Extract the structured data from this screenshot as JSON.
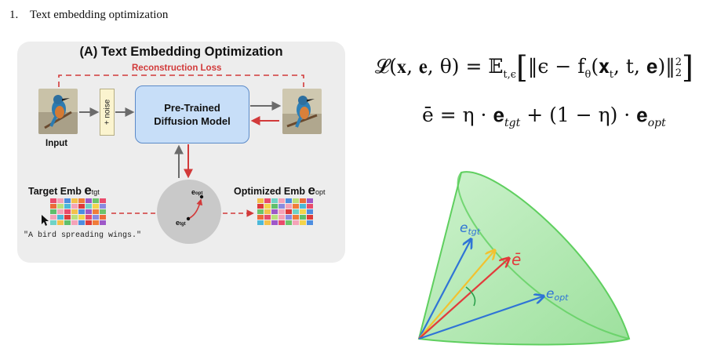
{
  "heading": {
    "number": "1.",
    "text": "Text embedding optimization"
  },
  "panel": {
    "title": "(A) Text Embedding Optimization",
    "reconstruction_loss": "Reconstruction Loss",
    "input_label": "Input",
    "noise_label": "+ noise",
    "model_line1": "Pre-Trained",
    "model_line2": "Diffusion Model",
    "target_label": "Target Emb",
    "target_symbol": "e",
    "target_sub": "tgt",
    "optimized_label": "Optimized Emb",
    "optimized_symbol": "e",
    "optimized_sub": "opt",
    "circle_opt": "e",
    "circle_opt_sub": "opt",
    "circle_tgt": "e",
    "circle_tgt_sub": "tgt",
    "prompt": "\"A bird spreading wings.\"",
    "accent_red": "#d23a3a",
    "model_fill": "#c7def8",
    "target_colors": [
      "#e94b6b",
      "#f5a3b8",
      "#4e8de0",
      "#f3c14b",
      "#f07c3a",
      "#9e58c8",
      "#6cc46b",
      "#e94b6b",
      "#ec6b3a",
      "#b9e07a",
      "#4bb8d9",
      "#f5a3b8",
      "#dd3b3b",
      "#6fd3c7",
      "#f3d44b",
      "#8a8ae0",
      "#5fbf6b",
      "#f5a3b8",
      "#e94b6b",
      "#f3c14b",
      "#4e8de0",
      "#9e58c8",
      "#f07c3a",
      "#6cc46b",
      "#f5a3b8",
      "#4bb8d9",
      "#dd3b3b",
      "#b9e07a",
      "#f3d44b",
      "#e94b6b",
      "#8a8ae0",
      "#ec6b3a",
      "#6fd3c7",
      "#f3c14b",
      "#5fbf6b",
      "#f5a3b8",
      "#4e8de0",
      "#dd3b3b",
      "#f07c3a",
      "#9e58c8"
    ],
    "opt_colors": [
      "#f3c14b",
      "#e94b6b",
      "#6fd3c7",
      "#f5a3b8",
      "#4e8de0",
      "#b9e07a",
      "#ec6b3a",
      "#9e58c8",
      "#dd3b3b",
      "#f3d44b",
      "#5fbf6b",
      "#8a8ae0",
      "#f5a3b8",
      "#f07c3a",
      "#4bb8d9",
      "#e94b6b",
      "#6cc46b",
      "#f3c14b",
      "#9e58c8",
      "#f5a3b8",
      "#dd3b3b",
      "#6fd3c7",
      "#f3d44b",
      "#4e8de0",
      "#ec6b3a",
      "#e94b6b",
      "#b9e07a",
      "#f5a3b8",
      "#8a8ae0",
      "#f07c3a",
      "#5fbf6b",
      "#dd3b3b",
      "#4bb8d9",
      "#f3c14b",
      "#9e58c8",
      "#e94b6b",
      "#6cc46b",
      "#f5a3b8",
      "#f3d44b",
      "#4e8de0"
    ]
  },
  "equations": {
    "loss_lhs": "𝓛(𝐱, 𝐞, θ) = 𝔼",
    "loss_sub": "t,ϵ",
    "loss_body": "‖ϵ − f",
    "loss_theta": "θ",
    "loss_args": "(𝐱",
    "loss_t": "t",
    "loss_rest": ", t, 𝐞)‖",
    "loss_pow": "2",
    "loss_norm": "2",
    "ebar_lhs": "ē = η · 𝐞",
    "ebar_tgt": "tgt",
    "ebar_mid": " + (1 − η) · 𝐞",
    "ebar_opt": "opt"
  },
  "sketch": {
    "label_tgt": "e",
    "label_tgt_sub": "tgt",
    "label_opt": "e",
    "label_opt_sub": "opt",
    "label_bar": "ē",
    "cone_color": "#5fcf5f",
    "arrow_tgt_color": "#2f74d6",
    "arrow_opt_color": "#2f74d6",
    "arrow_bar_color": "#e23b3b",
    "arrow_yellow_color": "#f2c230"
  }
}
